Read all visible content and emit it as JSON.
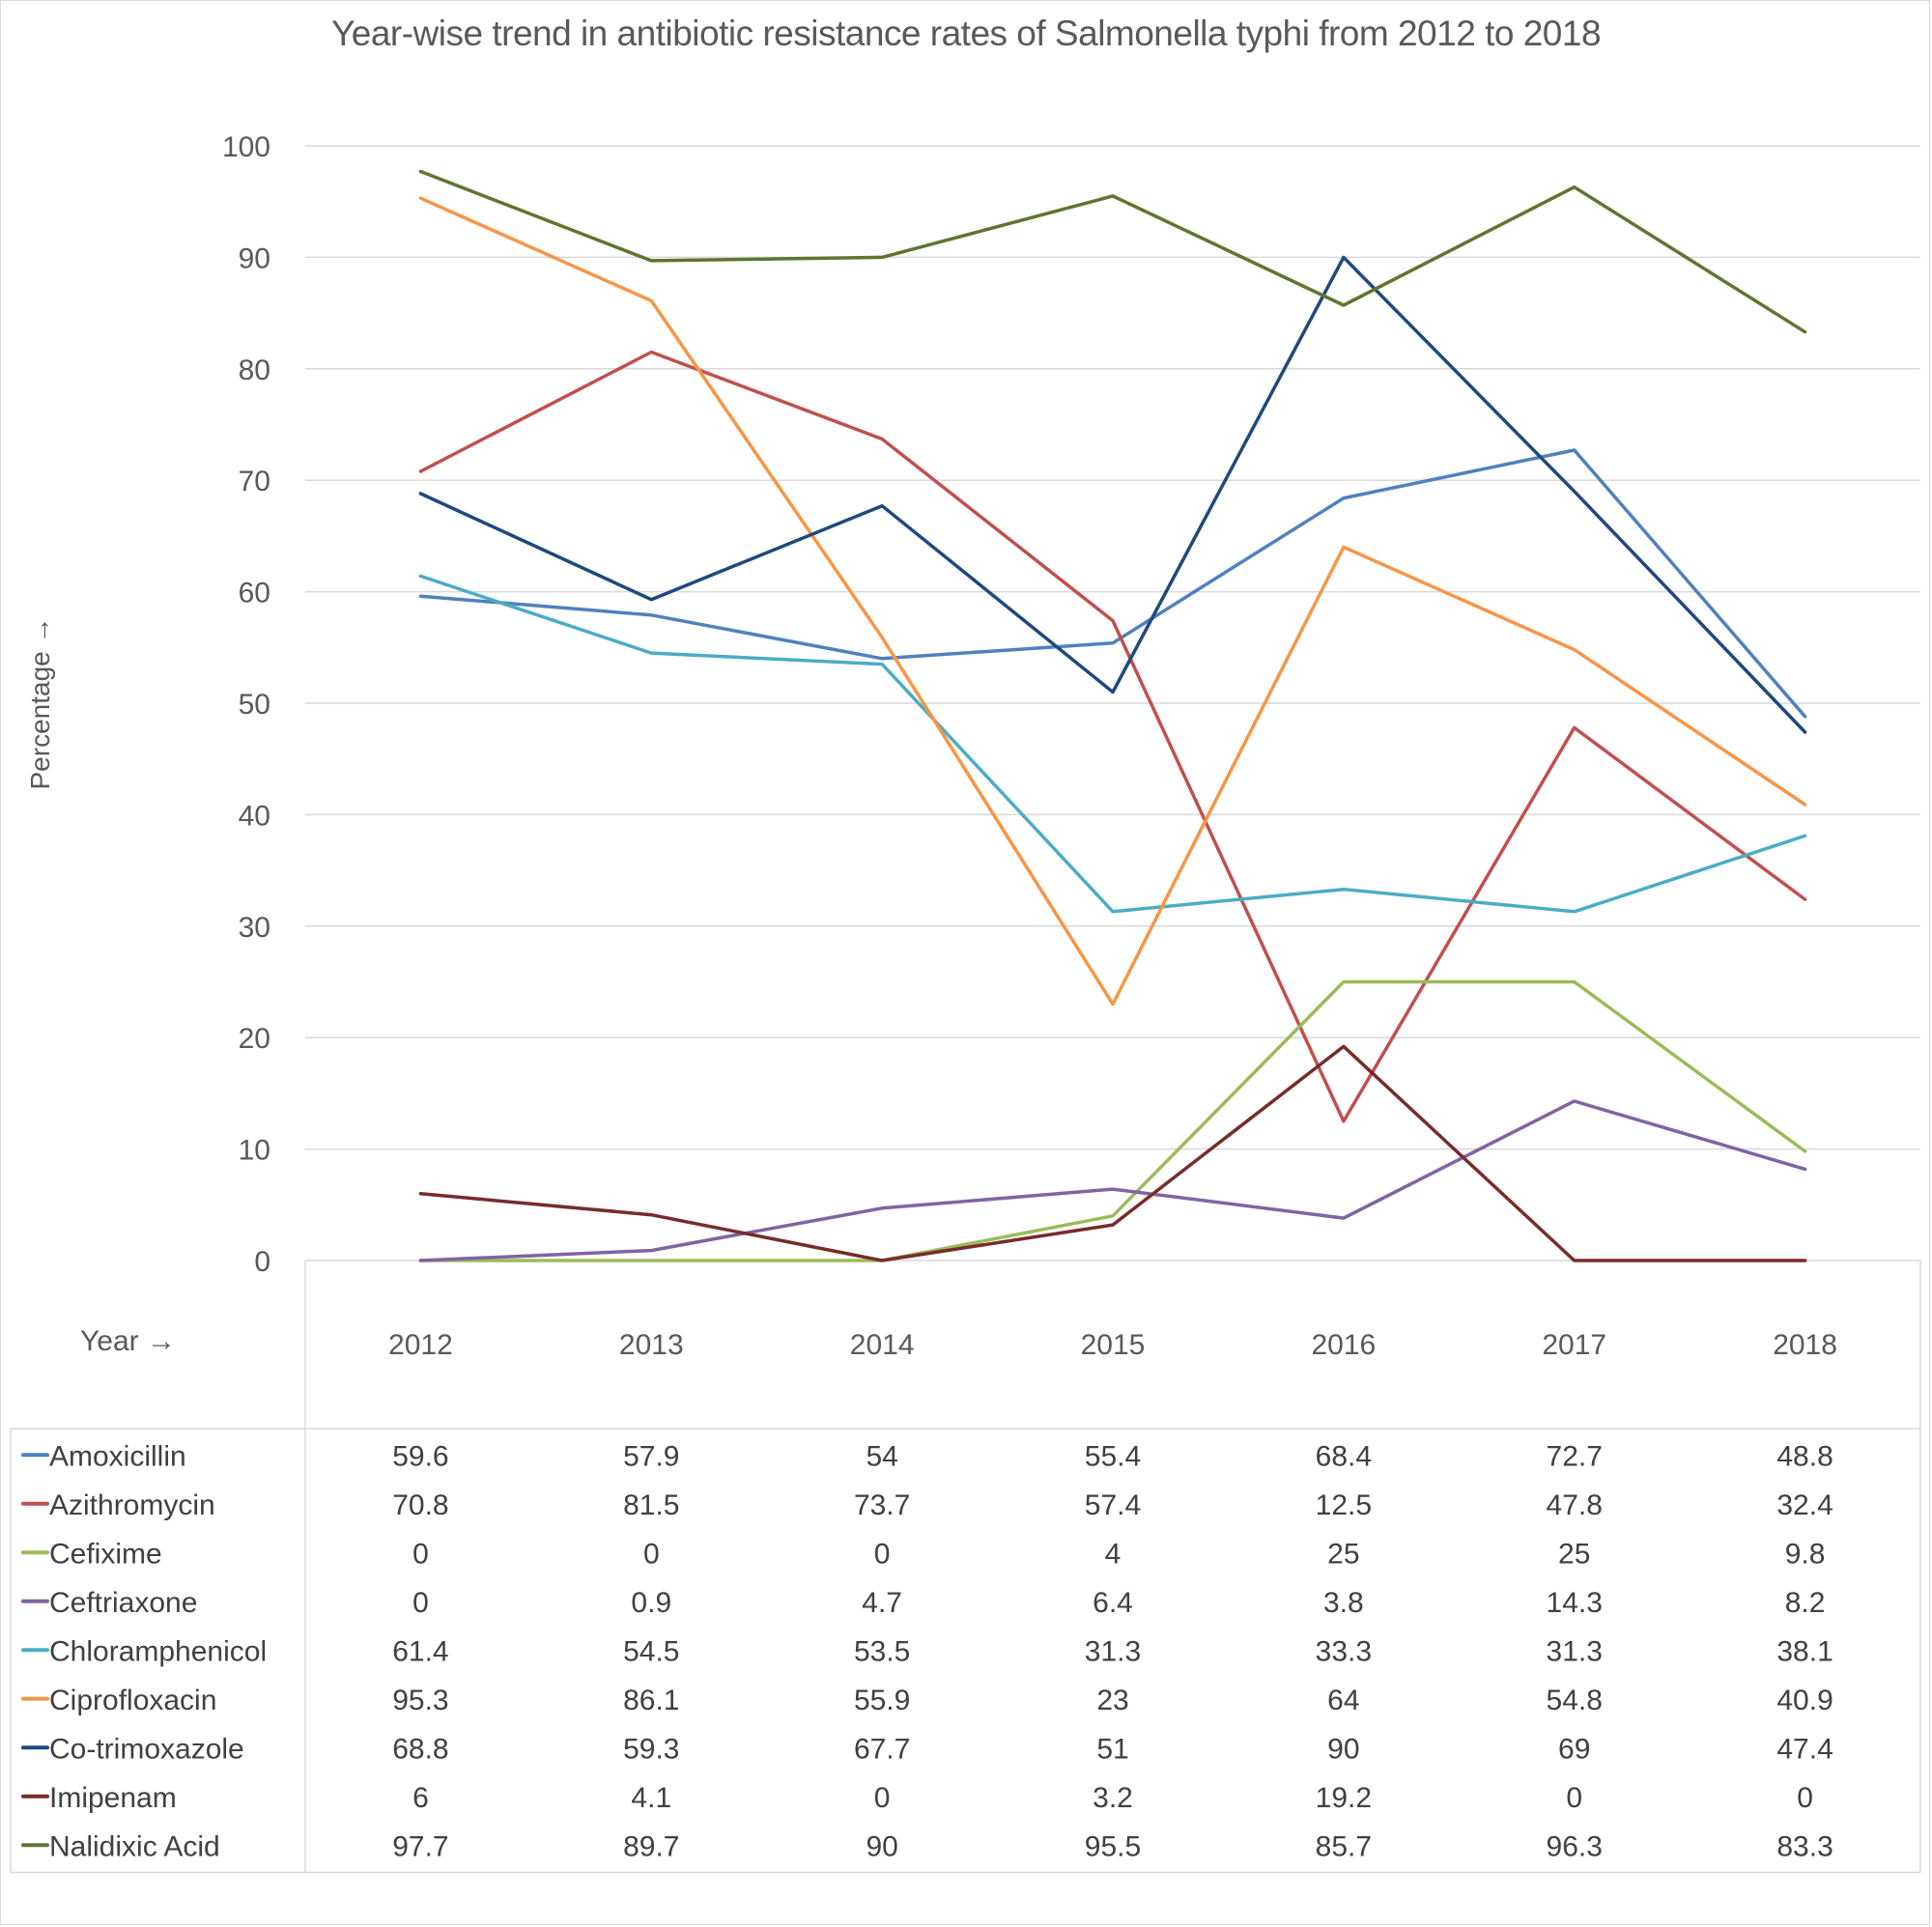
{
  "chart_data": {
    "type": "line",
    "title": "Year-wise trend in antibiotic resistance rates of Salmonella typhi from 2012 to 2018",
    "xlabel": "Year →",
    "ylabel": "Percentage →",
    "ylim": [
      0,
      100
    ],
    "yticks": [
      0,
      10,
      20,
      30,
      40,
      50,
      60,
      70,
      80,
      90,
      100
    ],
    "grid": true,
    "legend": "data-table-below",
    "categories": [
      "2012",
      "2013",
      "2014",
      "2015",
      "2016",
      "2017",
      "2018"
    ],
    "series": [
      {
        "name": "Amoxicillin",
        "color": "#4F81BD",
        "values": [
          59.6,
          57.9,
          54,
          55.4,
          68.4,
          72.7,
          48.8
        ]
      },
      {
        "name": "Azithromycin",
        "color": "#C0504D",
        "values": [
          70.8,
          81.5,
          73.7,
          57.4,
          12.5,
          47.8,
          32.4
        ]
      },
      {
        "name": "Cefixime",
        "color": "#9BBB59",
        "values": [
          0,
          0,
          0,
          4,
          25,
          25,
          9.8
        ]
      },
      {
        "name": "Ceftriaxone",
        "color": "#8064A2",
        "values": [
          0,
          0.9,
          4.7,
          6.4,
          3.8,
          14.3,
          8.2
        ]
      },
      {
        "name": "Chloramphenicol",
        "color": "#4BACC6",
        "values": [
          61.4,
          54.5,
          53.5,
          31.3,
          33.3,
          31.3,
          38.1
        ]
      },
      {
        "name": "Ciprofloxacin",
        "color": "#F79646",
        "values": [
          95.3,
          86.1,
          55.9,
          23,
          64,
          54.8,
          40.9
        ]
      },
      {
        "name": "Co-trimoxazole",
        "color": "#1F497D",
        "values": [
          68.8,
          59.3,
          67.7,
          51,
          90,
          69,
          47.4
        ]
      },
      {
        "name": "Imipenam",
        "color": "#772C2A",
        "values": [
          6,
          4.1,
          0,
          3.2,
          19.2,
          0,
          0
        ]
      },
      {
        "name": "Nalidixic Acid",
        "color": "#5F7530",
        "values": [
          97.7,
          89.7,
          90,
          95.5,
          85.7,
          96.3,
          83.3
        ]
      }
    ]
  }
}
